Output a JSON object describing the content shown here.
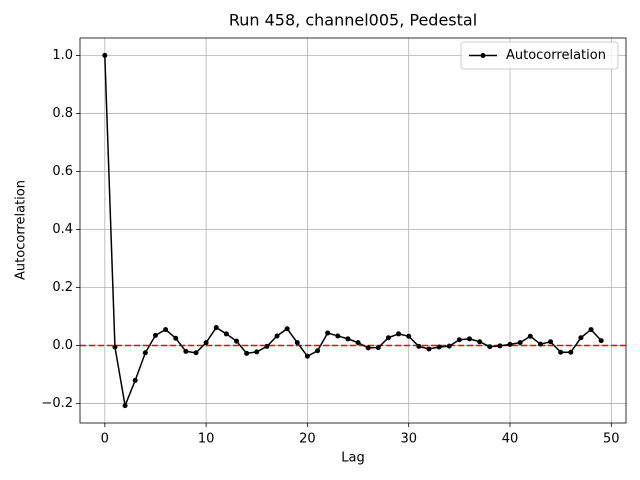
{
  "chart_data": {
    "type": "line",
    "title": "Run 458, channel005, Pedestal",
    "xlabel": "Lag",
    "ylabel": "Autocorrelation",
    "x": [
      0,
      1,
      2,
      3,
      4,
      5,
      6,
      7,
      8,
      9,
      10,
      11,
      12,
      13,
      14,
      15,
      16,
      17,
      18,
      19,
      20,
      21,
      22,
      23,
      24,
      25,
      26,
      27,
      28,
      29,
      30,
      31,
      32,
      33,
      34,
      35,
      36,
      37,
      38,
      39,
      40,
      41,
      42,
      43,
      44,
      45,
      46,
      47,
      48,
      49
    ],
    "series": [
      {
        "name": "Autocorrelation",
        "color": "#000000",
        "values": [
          1.0,
          -0.005,
          -0.207,
          -0.12,
          -0.025,
          0.035,
          0.055,
          0.025,
          -0.02,
          -0.025,
          0.01,
          0.062,
          0.04,
          0.015,
          -0.027,
          -0.022,
          -0.003,
          0.033,
          0.058,
          0.01,
          -0.037,
          -0.018,
          0.043,
          0.033,
          0.023,
          0.01,
          -0.008,
          -0.007,
          0.027,
          0.04,
          0.032,
          -0.003,
          -0.012,
          -0.005,
          -0.002,
          0.02,
          0.023,
          0.013,
          -0.004,
          -0.001,
          0.004,
          0.01,
          0.032,
          0.005,
          0.013,
          -0.023,
          -0.023,
          0.027,
          0.055,
          0.017
        ]
      }
    ],
    "hline": {
      "value": 0,
      "color": "#ff0000"
    },
    "xlim": [
      -2.45,
      51.45
    ],
    "ylim": [
      -0.267,
      1.06
    ],
    "xticks": [
      0,
      10,
      20,
      30,
      40,
      50
    ],
    "yticks": [
      {
        "value": -0.2,
        "label": "−0.2"
      },
      {
        "value": 0,
        "label": "0.0"
      },
      {
        "value": 0.2,
        "label": "0.2"
      },
      {
        "value": 0.4,
        "label": "0.4"
      },
      {
        "value": 0.6,
        "label": "0.6"
      },
      {
        "value": 0.8,
        "label": "0.8"
      },
      {
        "value": 1.0,
        "label": "1.0"
      }
    ],
    "grid": true,
    "legend": "upper right"
  }
}
